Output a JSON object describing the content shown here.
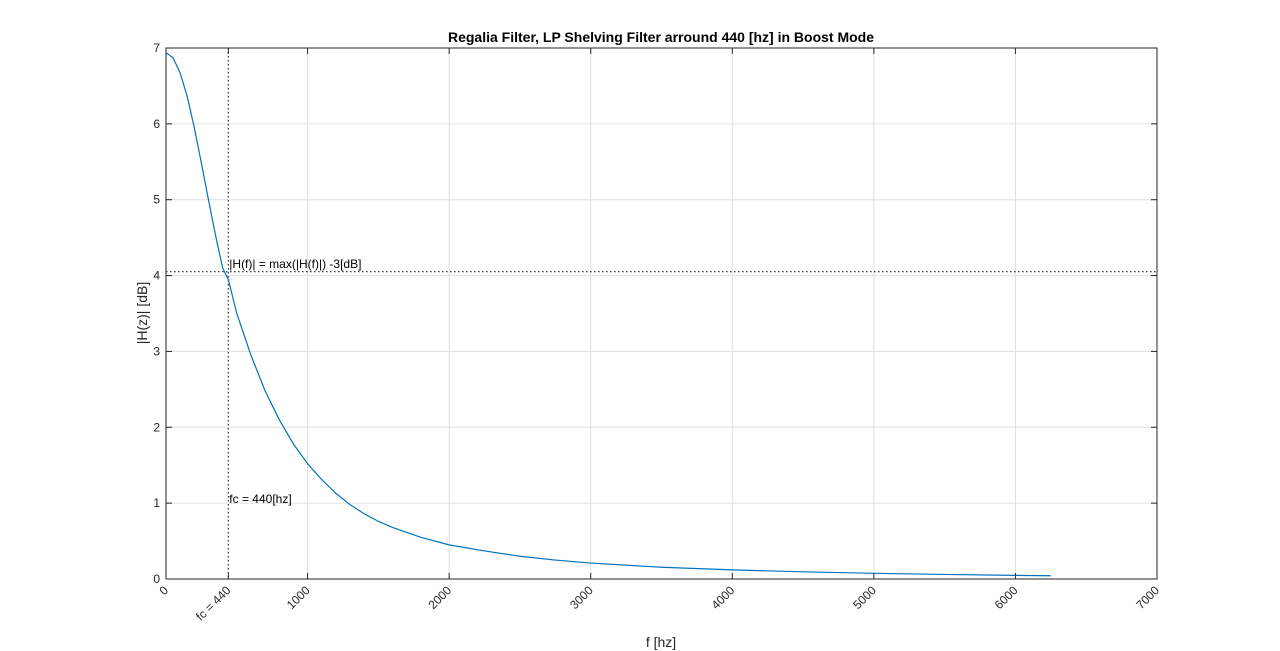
{
  "chart_data": {
    "type": "line",
    "title": "Regalia Filter, LP Shelving Filter arround 440 [hz] in Boost Mode",
    "xlabel": "f [hz]",
    "ylabel": "|H(z)| [dB]",
    "xlim": [
      0,
      7000
    ],
    "ylim": [
      0,
      7
    ],
    "grid": true,
    "x_ticks": [
      {
        "value": 0,
        "label": "0"
      },
      {
        "value": 440,
        "label": "fc = 440"
      },
      {
        "value": 1000,
        "label": "1000"
      },
      {
        "value": 2000,
        "label": "2000"
      },
      {
        "value": 3000,
        "label": "3000"
      },
      {
        "value": 4000,
        "label": "4000"
      },
      {
        "value": 5000,
        "label": "5000"
      },
      {
        "value": 6000,
        "label": "6000"
      },
      {
        "value": 7000,
        "label": "7000"
      }
    ],
    "x_grid": [
      1000,
      2000,
      3000,
      4000,
      5000,
      6000
    ],
    "y_ticks": [
      {
        "value": 0,
        "label": "0"
      },
      {
        "value": 1,
        "label": "1"
      },
      {
        "value": 2,
        "label": "2"
      },
      {
        "value": 3,
        "label": "3"
      },
      {
        "value": 4,
        "label": "4"
      },
      {
        "value": 5,
        "label": "5"
      },
      {
        "value": 6,
        "label": "6"
      },
      {
        "value": 7,
        "label": "7"
      }
    ],
    "series": [
      {
        "color": "#0072bd",
        "x": [
          0,
          50,
          100,
          150,
          200,
          250,
          300,
          350,
          400,
          440,
          500,
          600,
          700,
          800,
          900,
          1000,
          1100,
          1200,
          1300,
          1400,
          1500,
          1600,
          1800,
          2000,
          2250,
          2500,
          2750,
          3000,
          3500,
          4000,
          4500,
          5000,
          5500,
          6000,
          6250
        ],
        "y": [
          6.94,
          6.87,
          6.67,
          6.36,
          5.95,
          5.48,
          5.0,
          4.53,
          4.1,
          3.95,
          3.5,
          2.95,
          2.48,
          2.1,
          1.78,
          1.52,
          1.31,
          1.13,
          0.98,
          0.86,
          0.76,
          0.68,
          0.55,
          0.45,
          0.37,
          0.3,
          0.25,
          0.21,
          0.155,
          0.12,
          0.095,
          0.075,
          0.06,
          0.048,
          0.043
        ]
      }
    ],
    "reference_lines": [
      {
        "orientation": "vertical",
        "value": 440,
        "style": "dotted"
      },
      {
        "orientation": "horizontal",
        "value": 4.05,
        "style": "dotted"
      }
    ],
    "annotations": [
      {
        "text": "|H(f)| = max(|H(f)|) -3[dB]",
        "x": 440,
        "y": 4.1
      },
      {
        "text": "fc = 440[hz]",
        "x": 440,
        "y": 1.0
      }
    ],
    "line_color": "#0072bd",
    "grid_color": "#dfdfdf",
    "axis_color": "#262626"
  }
}
